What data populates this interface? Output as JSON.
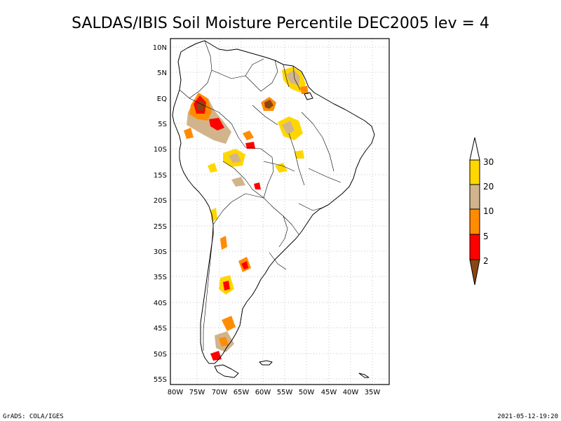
{
  "title": "SALDAS/IBIS Soil Moisture Percentile DEC2005 lev = 4",
  "map": {
    "lon_labels": [
      "80W",
      "75W",
      "70W",
      "65W",
      "60W",
      "55W",
      "50W",
      "45W",
      "40W",
      "35W"
    ],
    "lat_labels": [
      "10N",
      "5N",
      "EQ",
      "5S",
      "10S",
      "15S",
      "20S",
      "25S",
      "30S",
      "35S",
      "40S",
      "45S",
      "50S",
      "55S"
    ]
  },
  "colorbar": {
    "labels": [
      "2",
      "5",
      "10",
      "20",
      "30"
    ],
    "colors": [
      "#8b4513",
      "#ff0000",
      "#ff8c00",
      "#d2b48c",
      "#ffd700",
      "#ffffff"
    ]
  },
  "footer": {
    "left": "GrADS: COLA/IGES",
    "right": "2021-05-12-19:20"
  }
}
